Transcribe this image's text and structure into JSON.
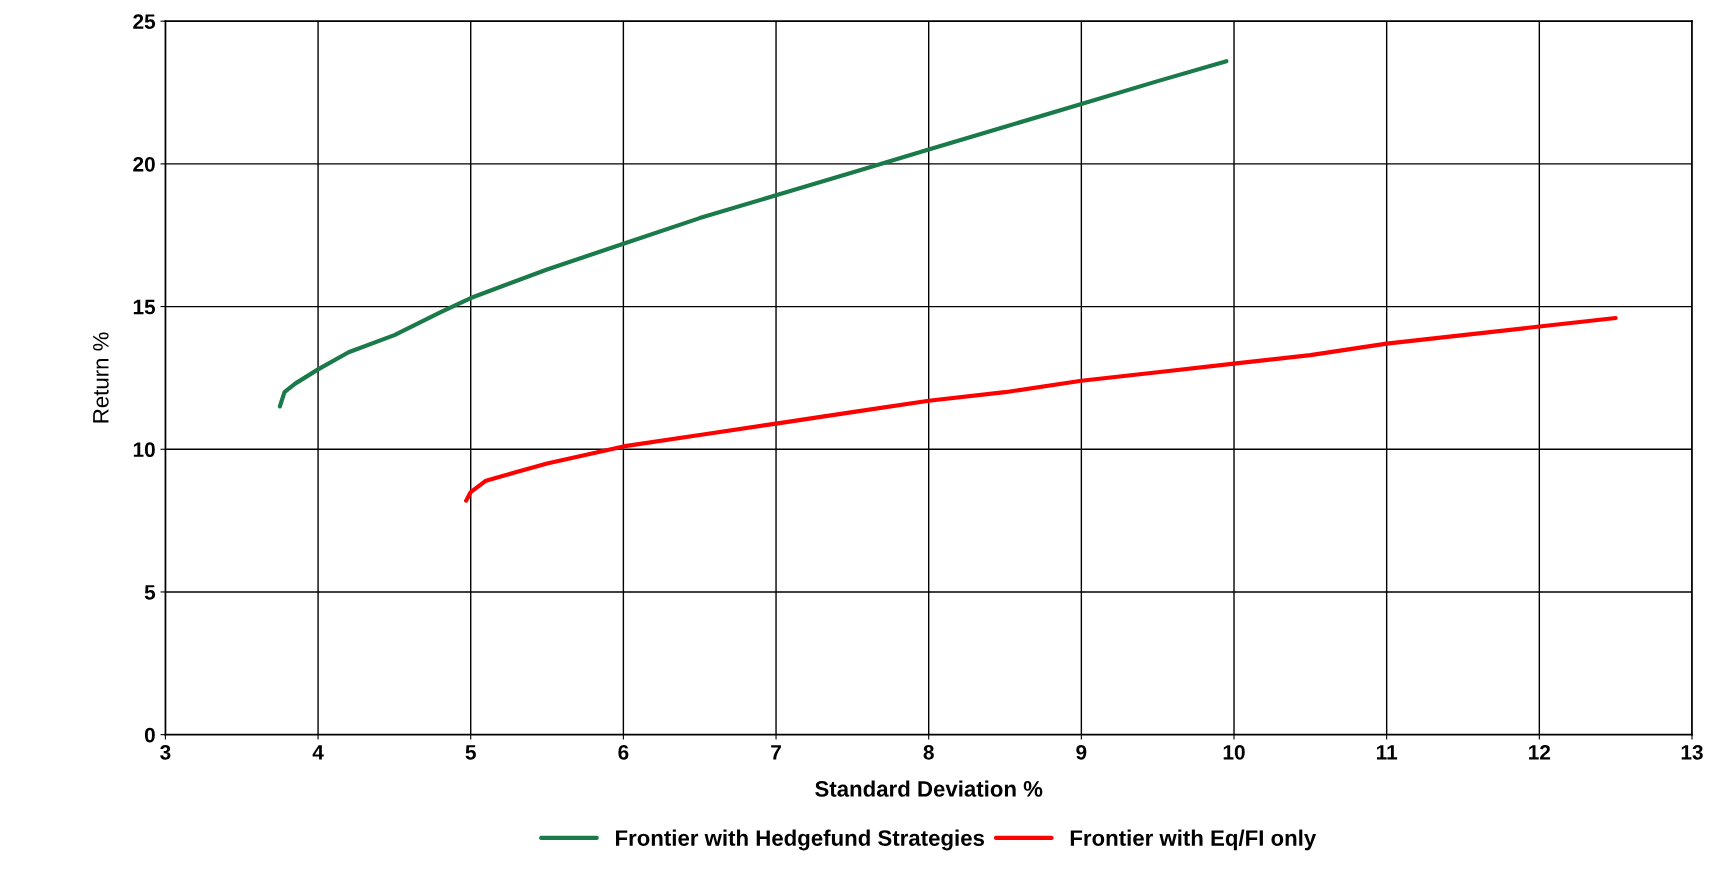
{
  "chart_data": {
    "type": "line",
    "xlabel": "Standard Deviation %",
    "ylabel": "Return %",
    "xlim": [
      3,
      13
    ],
    "xticks": [
      3,
      4,
      5,
      6,
      7,
      8,
      9,
      10,
      11,
      12,
      13
    ],
    "ylim": [
      0,
      25
    ],
    "yticks": [
      0,
      5,
      10,
      15,
      20,
      25
    ],
    "grid": true,
    "legend": "bottom",
    "marker": "none",
    "line_style": "solid",
    "series": [
      {
        "name": "Frontier with Hedgefund Strategies",
        "color": "#1a7a4a",
        "x": [
          3.75,
          3.78,
          3.85,
          4.0,
          4.2,
          4.5,
          4.8,
          5.0,
          5.5,
          6.0,
          6.5,
          7.0,
          7.5,
          8.0,
          8.5,
          9.0,
          9.5,
          9.95
        ],
        "values": [
          11.5,
          12.0,
          12.3,
          12.8,
          13.4,
          14.0,
          14.8,
          15.3,
          16.3,
          17.2,
          18.1,
          18.9,
          19.7,
          20.5,
          21.3,
          22.1,
          22.9,
          23.6
        ]
      },
      {
        "name": "Frontier with Eq/FI only",
        "color": "#ff0000",
        "x": [
          4.97,
          5.0,
          5.1,
          5.3,
          5.5,
          6.0,
          6.5,
          7.0,
          7.5,
          8.0,
          8.5,
          9.0,
          9.5,
          10.0,
          10.5,
          11.0,
          11.5,
          12.0,
          12.5
        ],
        "values": [
          8.2,
          8.5,
          8.9,
          9.2,
          9.5,
          10.1,
          10.5,
          10.9,
          11.3,
          11.7,
          12.0,
          12.4,
          12.7,
          13.0,
          13.3,
          13.7,
          14.0,
          14.3,
          14.6
        ]
      }
    ]
  }
}
